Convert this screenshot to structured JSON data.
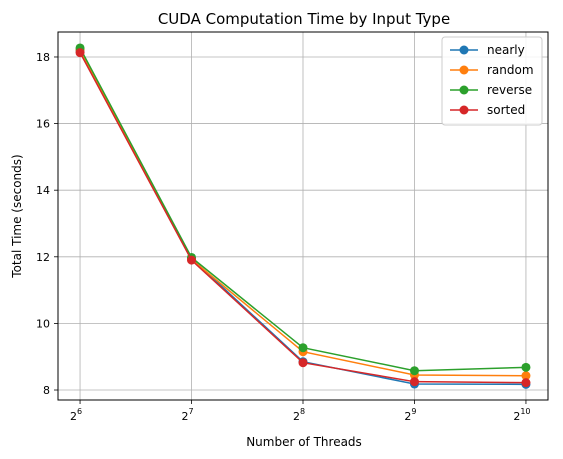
{
  "chart_data": {
    "type": "line",
    "title": "CUDA Computation Time by Input Type",
    "xlabel": "Number of Threads",
    "ylabel": "Total Time (seconds)",
    "x": [
      64,
      128,
      256,
      512,
      1024
    ],
    "x_scale": "log2",
    "x_tick_base": "2",
    "x_tick_exponents": [
      "6",
      "7",
      "8",
      "9",
      "10"
    ],
    "ylim": [
      7.7,
      18.75
    ],
    "y_ticks": [
      8,
      10,
      12,
      14,
      16,
      18
    ],
    "grid": true,
    "legend_position": "top-right",
    "series": [
      {
        "name": "nearly",
        "color": "#1f77b4",
        "values": [
          18.2,
          11.95,
          8.85,
          8.18,
          8.17
        ]
      },
      {
        "name": "random",
        "color": "#ff7f0e",
        "values": [
          18.22,
          11.92,
          9.15,
          8.45,
          8.43
        ]
      },
      {
        "name": "reverse",
        "color": "#2ca02c",
        "values": [
          18.27,
          11.98,
          9.27,
          8.58,
          8.68
        ]
      },
      {
        "name": "sorted",
        "color": "#d62728",
        "values": [
          18.13,
          11.9,
          8.82,
          8.25,
          8.22
        ]
      }
    ]
  }
}
